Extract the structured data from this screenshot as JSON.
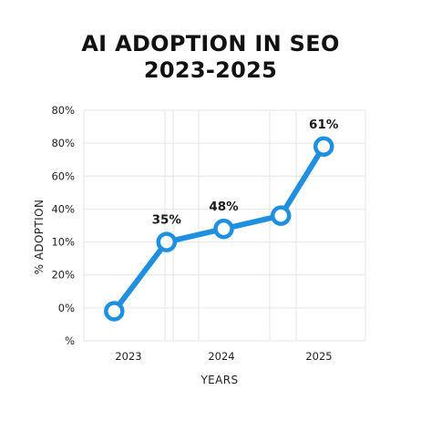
{
  "chart": {
    "title_line1": "AI ADOPTION IN SEO",
    "title_line2": "2023-2025"
  },
  "colors": {
    "line": "#1f8fe0",
    "marker_fill": "#ffffff",
    "grid": "#e6e6e6",
    "text": "#222222"
  },
  "chart_data": {
    "type": "line",
    "title": "AI ADOPTION IN SEO 2023-2025",
    "xlabel": "YEARS",
    "ylabel": "% ADOPTION",
    "x_tick_labels": [
      "2023",
      "2024",
      "2025"
    ],
    "y_tick_labels": [
      "80%",
      "80%",
      "60%",
      "40%",
      "10%",
      "20%",
      "0%",
      "%"
    ],
    "grid": true,
    "legend": "none",
    "series": [
      {
        "points": [
          {
            "x": 2022.85,
            "y_tick_index": 6.1
          },
          {
            "x": 2023.4,
            "y_tick_index": 4.0
          },
          {
            "x": 2024.0,
            "y_tick_index": 3.6
          },
          {
            "x": 2024.6,
            "y_tick_index": 3.2
          },
          {
            "x": 2025.05,
            "y_tick_index": 1.1
          }
        ]
      }
    ],
    "data_labels": [
      {
        "point_index": 1,
        "text": "35%"
      },
      {
        "point_index": 2,
        "text": "48%"
      },
      {
        "point_index": 4,
        "text": "61%"
      }
    ]
  }
}
